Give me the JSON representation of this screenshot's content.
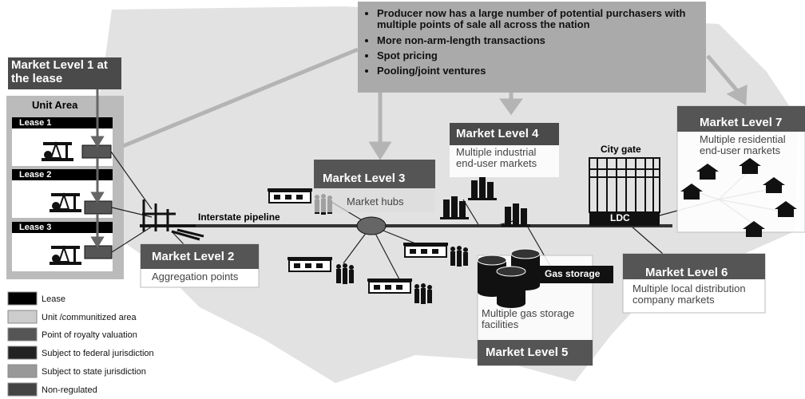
{
  "callout": {
    "bullets": [
      "Producer now has a large number of potential purchasers with multiple points of sale all across the nation",
      "More non-arm-length transactions",
      "Spot pricing",
      "Pooling/joint ventures"
    ]
  },
  "market_levels": [
    {
      "title": "Market Level 1 at the lease"
    },
    {
      "title": "Market Level 2",
      "description": "Aggregation points"
    },
    {
      "title": "Market Level 3",
      "description": "Market hubs"
    },
    {
      "title": "Market Level 4",
      "description": "Multiple industrial end-user markets"
    },
    {
      "title": "Market Level 5",
      "description": "Multiple gas storage facilities"
    },
    {
      "title": "Market Level 6",
      "description": "Multiple local distribution company markets"
    },
    {
      "title": "Market Level 7",
      "description": "Multiple residential end-user markets"
    }
  ],
  "labels": {
    "unit_area": "Unit Area",
    "leases": [
      "Lease 1",
      "Lease 2",
      "Lease 3"
    ],
    "pipeline": "Interstate pipeline",
    "city_gate": "City gate",
    "ldc": "LDC",
    "gas_storage": "Gas storage"
  },
  "legend": [
    "Lease",
    "Unit /communitized area",
    "Point of royalty valuation",
    "Subject to federal jurisdiction",
    "Subject to state jurisdiction",
    "Non-regulated"
  ]
}
